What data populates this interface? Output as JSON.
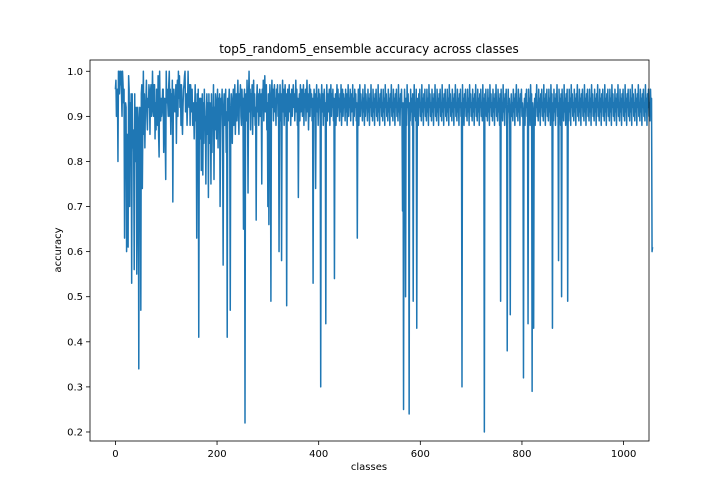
{
  "chart_data": {
    "type": "line",
    "title": "top5_random5_ensemble accuracy across classes",
    "xlabel": "classes",
    "ylabel": "accuracy",
    "xlim": [
      -50,
      1050
    ],
    "ylim": [
      0.18,
      1.025
    ],
    "x_ticks": [
      0,
      200,
      400,
      600,
      800,
      1000
    ],
    "x_tick_labels": [
      "0",
      "200",
      "400",
      "600",
      "800",
      "1000"
    ],
    "y_ticks": [
      0.2,
      0.3,
      0.4,
      0.5,
      0.6,
      0.7,
      0.8,
      0.9,
      1.0
    ],
    "y_tick_labels": [
      "0.2",
      "0.3",
      "0.4",
      "0.5",
      "0.6",
      "0.7",
      "0.8",
      "0.9",
      "1.0"
    ],
    "grid": false,
    "legend": "none",
    "series": [
      {
        "color": "#1f77b4",
        "x_start": 0,
        "x_step": 1,
        "values": [
          0.96,
          0.98,
          0.9,
          0.94,
          0.96,
          0.8,
          1.0,
          0.97,
          0.95,
          1.0,
          0.97,
          1.0,
          0.95,
          0.9,
          1.0,
          0.97,
          0.93,
          0.96,
          0.63,
          0.88,
          0.93,
          0.92,
          0.6,
          0.86,
          0.8,
          0.61,
          0.99,
          0.96,
          0.7,
          0.93,
          0.88,
          0.95,
          0.53,
          0.95,
          0.83,
          0.87,
          0.82,
          0.56,
          0.95,
          0.8,
          0.83,
          0.92,
          0.55,
          0.68,
          0.92,
          0.88,
          0.34,
          0.87,
          0.92,
          0.85,
          0.47,
          0.95,
          0.97,
          0.74,
          0.88,
          1.0,
          0.86,
          0.95,
          0.83,
          0.92,
          0.93,
          0.98,
          0.9,
          0.87,
          0.94,
          0.92,
          0.97,
          0.95,
          0.86,
          0.95,
          0.97,
          0.9,
          0.92,
          1.0,
          0.92,
          0.9,
          0.97,
          0.97,
          0.85,
          0.93,
          0.87,
          0.96,
          0.93,
          0.88,
          0.99,
          0.86,
          0.81,
          1.0,
          0.92,
          0.89,
          0.94,
          0.9,
          0.92,
          0.96,
          0.96,
          0.82,
          0.93,
          0.94,
          0.85,
          0.76,
          1.0,
          0.93,
          0.96,
          0.93,
          0.9,
          0.97,
          1.0,
          0.9,
          0.96,
          0.86,
          0.95,
          0.89,
          0.98,
          0.71,
          0.93,
          0.96,
          0.92,
          0.91,
          0.93,
          0.97,
          0.84,
          0.95,
          0.98,
          0.9,
          1.0,
          0.94,
          0.99,
          0.92,
          0.97,
          0.88,
          0.97,
          0.9,
          0.86,
          0.92,
          0.96,
          0.97,
          0.99,
          1.0,
          0.91,
          0.92,
          0.95,
          0.88,
          0.93,
          1.0,
          0.94,
          0.92,
          0.97,
          0.88,
          0.97,
          0.93,
          0.91,
          0.96,
          0.88,
          0.92,
          0.93,
          0.85,
          0.92,
          0.97,
          0.89,
          0.93,
          0.63,
          0.95,
          0.81,
          0.96,
          0.41,
          0.86,
          0.94,
          0.85,
          0.94,
          0.78,
          0.91,
          0.95,
          0.77,
          0.93,
          0.84,
          0.96,
          0.88,
          0.9,
          0.75,
          0.91,
          0.95,
          0.86,
          0.93,
          0.72,
          0.95,
          0.84,
          0.93,
          0.9,
          0.75,
          0.95,
          0.82,
          0.92,
          0.89,
          0.97,
          0.76,
          0.92,
          0.87,
          0.95,
          0.93,
          0.85,
          0.91,
          0.96,
          0.83,
          0.94,
          0.9,
          0.95,
          0.7,
          0.87,
          0.94,
          0.92,
          0.96,
          0.83,
          0.57,
          0.92,
          0.95,
          0.88,
          0.93,
          0.96,
          0.82,
          0.91,
          0.41,
          0.94,
          0.89,
          0.93,
          0.96,
          0.87,
          0.47,
          0.91,
          0.95,
          0.93,
          0.84,
          0.92,
          0.96,
          0.88,
          0.93,
          0.97,
          0.86,
          0.92,
          0.95,
          0.89,
          0.94,
          0.98,
          0.91,
          0.86,
          0.95,
          0.93,
          0.97,
          0.9,
          0.88,
          0.96,
          0.92,
          0.94,
          0.65,
          0.93,
          0.96,
          0.22,
          0.91,
          0.95,
          0.89,
          0.98,
          0.92,
          0.73,
          0.94,
          1.0,
          0.91,
          0.96,
          0.87,
          0.95,
          0.92,
          0.97,
          0.86,
          0.93,
          0.98,
          0.9,
          0.95,
          0.88,
          0.92,
          0.67,
          0.94,
          0.97,
          0.91,
          0.95,
          0.88,
          0.93,
          0.96,
          0.9,
          0.92,
          0.95,
          0.75,
          0.96,
          0.92,
          0.98,
          0.89,
          0.94,
          0.99,
          0.91,
          0.95,
          0.97,
          0.87,
          0.93,
          0.7,
          0.95,
          0.66,
          0.92,
          0.97,
          0.9,
          0.49,
          0.94,
          0.98,
          0.92,
          0.96,
          0.89,
          0.95,
          0.97,
          0.91,
          0.94,
          0.88,
          0.96,
          0.93,
          0.97,
          0.9,
          0.95,
          0.6,
          0.92,
          0.97,
          0.89,
          0.95,
          0.58,
          0.93,
          0.98,
          0.91,
          0.96,
          0.88,
          0.94,
          0.97,
          0.9,
          0.95,
          0.48,
          0.92,
          0.96,
          0.89,
          0.94,
          0.97,
          0.91,
          0.95,
          0.88,
          0.93,
          0.96,
          0.9,
          0.94,
          0.97,
          0.92,
          0.95,
          0.89,
          0.93,
          0.98,
          0.91,
          0.96,
          0.88,
          0.94,
          0.72,
          0.92,
          0.95,
          0.89,
          0.97,
          0.91,
          0.94,
          0.96,
          0.9,
          0.93,
          0.97,
          0.88,
          0.95,
          0.92,
          0.96,
          0.89,
          0.94,
          0.98,
          0.91,
          0.95,
          0.87,
          0.93,
          0.97,
          0.9,
          0.96,
          0.92,
          0.95,
          0.89,
          0.94,
          0.53,
          0.92,
          0.96,
          0.9,
          0.95,
          0.74,
          0.93,
          0.97,
          0.91,
          0.94,
          0.88,
          0.96,
          0.92,
          0.95,
          0.89,
          0.3,
          0.93,
          0.97,
          0.91,
          0.95,
          0.88,
          0.94,
          0.96,
          0.9,
          0.93,
          0.44,
          0.92,
          0.97,
          0.89,
          0.95,
          0.91,
          0.94,
          0.96,
          0.88,
          0.93,
          0.97,
          0.9,
          0.95,
          0.92,
          0.96,
          0.89,
          0.94,
          0.54,
          0.91,
          0.95,
          0.88,
          0.93,
          0.97,
          0.9,
          0.96,
          0.92,
          0.94,
          0.89,
          0.95,
          0.91,
          0.97,
          0.88,
          0.93,
          0.96,
          0.9,
          0.95,
          0.92,
          0.94,
          0.89,
          0.96,
          0.91,
          0.95,
          0.88,
          0.93,
          0.97,
          0.9,
          0.94,
          0.92,
          0.96,
          0.89,
          0.95,
          0.91,
          0.93,
          0.97,
          0.88,
          0.94,
          0.9,
          0.96,
          0.92,
          0.95,
          0.89,
          0.93,
          0.63,
          0.91,
          0.96,
          0.88,
          0.94,
          0.97,
          0.9,
          0.95,
          0.92,
          0.93,
          0.89,
          0.96,
          0.91,
          0.94,
          0.88,
          0.97,
          0.9,
          0.95,
          0.92,
          0.93,
          0.89,
          0.96,
          0.91,
          0.94,
          0.88,
          0.95,
          0.92,
          0.97,
          0.9,
          0.93,
          0.89,
          0.96,
          0.91,
          0.94,
          0.88,
          0.95,
          0.92,
          0.96,
          0.9,
          0.93,
          0.89,
          0.97,
          0.91,
          0.94,
          0.88,
          0.95,
          0.92,
          0.96,
          0.9,
          0.93,
          0.89,
          0.96,
          0.91,
          0.94,
          0.88,
          0.97,
          0.92,
          0.95,
          0.9,
          0.93,
          0.89,
          0.96,
          0.91,
          0.94,
          0.88,
          0.95,
          0.92,
          0.97,
          0.9,
          0.93,
          0.89,
          0.96,
          0.91,
          0.94,
          0.88,
          0.95,
          0.92,
          0.96,
          0.9,
          0.93,
          0.89,
          0.97,
          0.91,
          0.94,
          0.88,
          0.95,
          0.92,
          0.96,
          0.9,
          0.69,
          0.93,
          0.25,
          0.89,
          0.96,
          0.91,
          0.5,
          0.94,
          0.88,
          0.97,
          0.92,
          0.95,
          0.9,
          0.24,
          0.93,
          0.89,
          0.96,
          0.91,
          0.94,
          0.88,
          0.95,
          0.49,
          0.92,
          0.97,
          0.9,
          0.93,
          0.89,
          0.96,
          0.43,
          0.91,
          0.94,
          0.88,
          0.95,
          0.92,
          0.96,
          0.9,
          0.93,
          0.89,
          0.97,
          0.91,
          0.94,
          0.88,
          0.95,
          0.92,
          0.96,
          0.9,
          0.93,
          0.89,
          0.96,
          0.91,
          0.94,
          0.88,
          0.97,
          0.92,
          0.95,
          0.9,
          0.93,
          0.89,
          0.96,
          0.91,
          0.94,
          0.88,
          0.95,
          0.92,
          0.97,
          0.9,
          0.93,
          0.89,
          0.96,
          0.91,
          0.94,
          0.88,
          0.95,
          0.92,
          0.96,
          0.9,
          0.93,
          0.89,
          0.97,
          0.91,
          0.94,
          0.88,
          0.95,
          0.92,
          0.96,
          0.9,
          0.93,
          0.89,
          0.96,
          0.91,
          0.94,
          0.88,
          0.97,
          0.92,
          0.95,
          0.9,
          0.93,
          0.89,
          0.96,
          0.91,
          0.94,
          0.88,
          0.95,
          0.92,
          0.97,
          0.9,
          0.93,
          0.89,
          0.96,
          0.91,
          0.94,
          0.88,
          0.95,
          0.92,
          0.96,
          0.9,
          0.93,
          0.3,
          0.97,
          0.91,
          0.94,
          0.88,
          0.95,
          0.92,
          0.96,
          0.9,
          0.93,
          0.89,
          0.96,
          0.91,
          0.94,
          0.88,
          0.97,
          0.92,
          0.95,
          0.9,
          0.93,
          0.89,
          0.96,
          0.91,
          0.94,
          0.88,
          0.95,
          0.92,
          0.97,
          0.9,
          0.93,
          0.89,
          0.96,
          0.91,
          0.94,
          0.88,
          0.95,
          0.92,
          0.96,
          0.9,
          0.93,
          0.89,
          0.97,
          0.91,
          0.94,
          0.2,
          0.95,
          0.92,
          0.96,
          0.9,
          0.93,
          0.89,
          0.96,
          0.91,
          0.94,
          0.88,
          0.97,
          0.92,
          0.95,
          0.9,
          0.93,
          0.89,
          0.96,
          0.91,
          0.94,
          0.88,
          0.95,
          0.92,
          0.97,
          0.9,
          0.93,
          0.89,
          0.96,
          0.91,
          0.94,
          0.88,
          0.95,
          0.49,
          0.96,
          0.9,
          0.93,
          0.89,
          0.97,
          0.91,
          0.94,
          0.88,
          0.95,
          0.92,
          0.96,
          0.9,
          0.38,
          0.89,
          0.96,
          0.91,
          0.94,
          0.88,
          0.46,
          0.92,
          0.95,
          0.9,
          0.93,
          0.89,
          0.96,
          0.91,
          0.94,
          0.88,
          0.95,
          0.92,
          0.97,
          0.9,
          0.93,
          0.89,
          0.96,
          0.91,
          0.94,
          0.88,
          0.95,
          0.92,
          0.96,
          0.9,
          0.93,
          0.89,
          0.32,
          0.91,
          0.94,
          0.88,
          0.95,
          0.92,
          0.96,
          0.9,
          0.93,
          0.44,
          0.96,
          0.91,
          0.94,
          0.88,
          0.97,
          0.92,
          0.95,
          0.29,
          0.93,
          0.89,
          0.43,
          0.91,
          0.94,
          0.88,
          0.95,
          0.92,
          0.97,
          0.9,
          0.93,
          0.89,
          0.96,
          0.91,
          0.94,
          0.88,
          0.95,
          0.92,
          0.96,
          0.9,
          0.93,
          0.89,
          0.97,
          0.91,
          0.94,
          0.88,
          0.95,
          0.92,
          0.96,
          0.9,
          0.93,
          0.89,
          0.96,
          0.91,
          0.94,
          0.88,
          0.97,
          0.92,
          0.95,
          0.43,
          0.93,
          0.89,
          0.96,
          0.91,
          0.94,
          0.88,
          0.95,
          0.92,
          0.97,
          0.9,
          0.93,
          0.58,
          0.96,
          0.91,
          0.94,
          0.88,
          0.95,
          0.5,
          0.96,
          0.9,
          0.93,
          0.89,
          0.97,
          0.91,
          0.94,
          0.88,
          0.95,
          0.92,
          0.96,
          0.49,
          0.93,
          0.89,
          0.96,
          0.91,
          0.94,
          0.88,
          0.97,
          0.92,
          0.95,
          0.9,
          0.93,
          0.89,
          0.96,
          0.91,
          0.94,
          0.88,
          0.95,
          0.92,
          0.97,
          0.9,
          0.93,
          0.89,
          0.96,
          0.91,
          0.94,
          0.88,
          0.95,
          0.92,
          0.96,
          0.9,
          0.93,
          0.89,
          0.97,
          0.91,
          0.94,
          0.88,
          0.95,
          0.92,
          0.96,
          0.9,
          0.93,
          0.89,
          0.96,
          0.91,
          0.94,
          0.88,
          0.97,
          0.92,
          0.95,
          0.9,
          0.93,
          0.89,
          0.96,
          0.91,
          0.94,
          0.88,
          0.95,
          0.92,
          0.97,
          0.9,
          0.93,
          0.89,
          0.96,
          0.91,
          0.94,
          0.88,
          0.95,
          0.92,
          0.96,
          0.9,
          0.93,
          0.89,
          0.97,
          0.91,
          0.94,
          0.88,
          0.95,
          0.92,
          0.96,
          0.9,
          0.93,
          0.89,
          0.96,
          0.91,
          0.94,
          0.88,
          0.97,
          0.92,
          0.95,
          0.9,
          0.93,
          0.89,
          0.96,
          0.91,
          0.94,
          0.88,
          0.95,
          0.92,
          0.97,
          0.9,
          0.93,
          0.89,
          0.96,
          0.91,
          0.94,
          0.88,
          0.95,
          0.92,
          0.96,
          0.9,
          0.93,
          0.89,
          0.97,
          0.91,
          0.94,
          0.88,
          0.95,
          0.92,
          0.96,
          0.9,
          0.93,
          0.89,
          0.96,
          0.91,
          0.94,
          0.88,
          0.97,
          0.92,
          0.95,
          0.9,
          0.93,
          0.89,
          0.96,
          0.91,
          0.94,
          0.88,
          0.95,
          0.92,
          0.97,
          0.9,
          0.93,
          0.89,
          0.96,
          0.91,
          0.94,
          0.88,
          0.95,
          0.92,
          0.96,
          0.9,
          0.93,
          0.89,
          0.97,
          0.91,
          0.94,
          0.88,
          0.95,
          0.92,
          0.96,
          0.9,
          0.93,
          0.89,
          0.96,
          0.91,
          0.94,
          0.6,
          0.61
        ]
      }
    ]
  }
}
